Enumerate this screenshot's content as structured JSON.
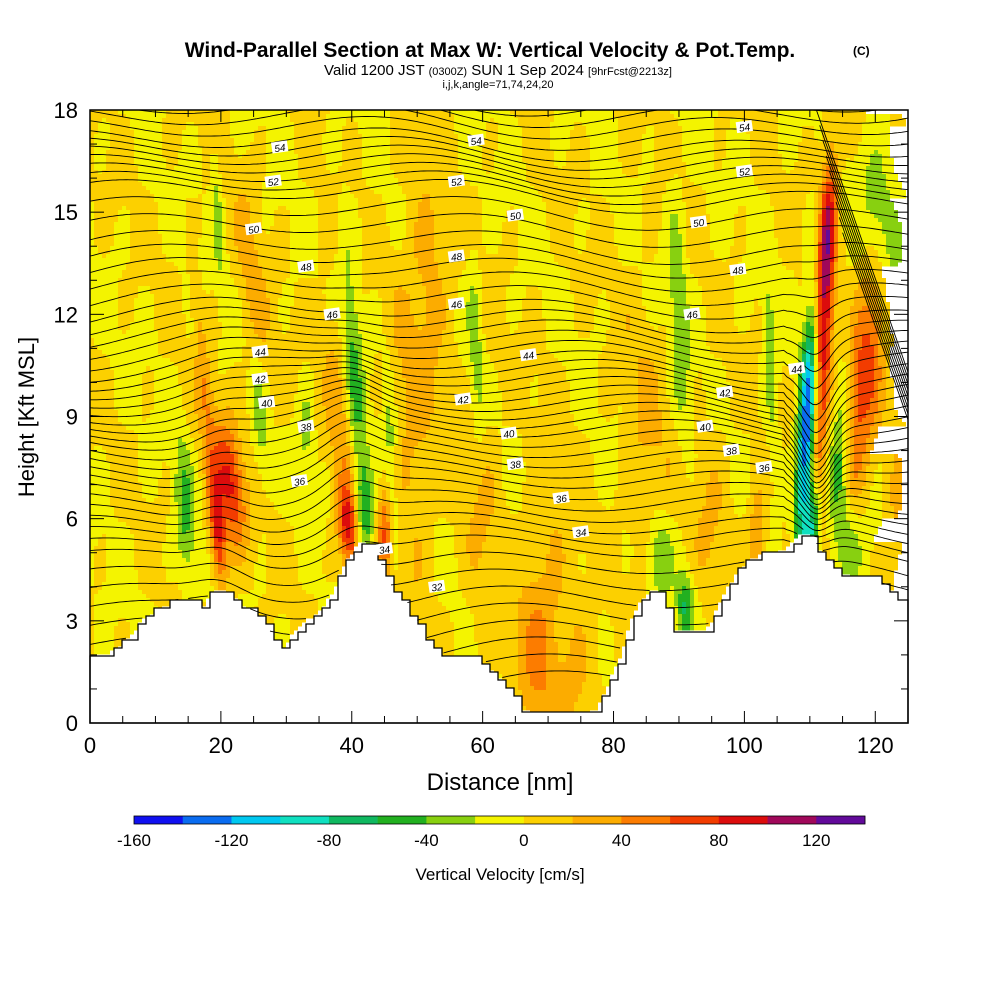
{
  "chart_data": {
    "type": "heatmap",
    "title": "Wind-Parallel Section at Max W: Vertical Velocity & Pot.Temp.",
    "title_mark": "(C)",
    "subtitle_main": "Valid 1200 JST",
    "subtitle_utc": "(0300Z)",
    "subtitle_date": "SUN 1 Sep 2024",
    "subtitle_fcst": "[9hrFcst@2213z]",
    "subtitle2": "i,j,k,angle=71,74,24,20",
    "xlabel": "Distance [nm]",
    "ylabel": "Height [Kft MSL]",
    "xlim": [
      0,
      125
    ],
    "ylim": [
      0,
      18
    ],
    "x_ticks": [
      "0",
      "20",
      "40",
      "60",
      "80",
      "100",
      "120"
    ],
    "y_ticks": [
      "0",
      "3",
      "6",
      "9",
      "12",
      "15",
      "18"
    ],
    "colorbar": {
      "label": "Vertical Velocity [cm/s]",
      "tick_values": [
        -160,
        -120,
        -80,
        -40,
        0,
        40,
        80,
        120
      ],
      "tick_labels": [
        "-160",
        "-120",
        "-80",
        "-40",
        "0",
        "40",
        "80",
        "120"
      ],
      "bin_edges": [
        -160,
        -140,
        -120,
        -100,
        -80,
        -60,
        -40,
        -20,
        0,
        20,
        40,
        60,
        80,
        100,
        120,
        140
      ],
      "colors": [
        "#1010f0",
        "#0a6cf0",
        "#00c8f0",
        "#10e0c0",
        "#10b860",
        "#22b020",
        "#88d010",
        "#f4f400",
        "#fcd000",
        "#fcac00",
        "#fc7c00",
        "#f23c00",
        "#dc0c0c",
        "#a0085a",
        "#620a9a"
      ]
    },
    "terrain": [
      [
        0,
        2.0
      ],
      [
        2,
        2.0
      ],
      [
        4,
        2.2
      ],
      [
        6,
        2.5
      ],
      [
        8,
        3.0
      ],
      [
        10,
        3.3
      ],
      [
        12,
        3.5
      ],
      [
        14,
        3.6
      ],
      [
        16,
        3.6
      ],
      [
        17.5,
        3.4
      ],
      [
        18.5,
        3.8
      ],
      [
        20,
        3.9
      ],
      [
        21.5,
        3.8
      ],
      [
        23,
        3.5
      ],
      [
        25,
        3.2
      ],
      [
        27,
        2.8
      ],
      [
        28.5,
        2.2
      ],
      [
        29.5,
        2.1
      ],
      [
        31,
        2.6
      ],
      [
        33,
        3.0
      ],
      [
        35,
        3.3
      ],
      [
        37,
        3.8
      ],
      [
        38.5,
        4.5
      ],
      [
        40,
        5.0
      ],
      [
        41,
        5.3
      ],
      [
        43,
        5.2
      ],
      [
        44.5,
        4.6
      ],
      [
        46,
        4.0
      ],
      [
        47.5,
        3.6
      ],
      [
        49,
        3.2
      ],
      [
        51,
        2.5
      ],
      [
        53,
        2.0
      ],
      [
        56,
        1.9
      ],
      [
        59,
        1.9
      ],
      [
        61,
        1.6
      ],
      [
        63,
        1.2
      ],
      [
        65,
        0.8
      ],
      [
        66,
        0.4
      ],
      [
        68,
        0.3
      ],
      [
        70,
        0.3
      ],
      [
        72,
        0.3
      ],
      [
        74,
        0.3
      ],
      [
        76,
        0.3
      ],
      [
        77.5,
        0.4
      ],
      [
        78.5,
        0.8
      ],
      [
        80,
        1.5
      ],
      [
        81.5,
        2.2
      ],
      [
        82.5,
        3.0
      ],
      [
        84,
        3.5
      ],
      [
        86,
        3.9
      ],
      [
        87.5,
        3.8
      ],
      [
        88.5,
        3.0
      ],
      [
        89.5,
        2.7
      ],
      [
        92,
        2.7
      ],
      [
        94,
        2.7
      ],
      [
        95,
        3.0
      ],
      [
        96,
        3.4
      ],
      [
        97,
        3.8
      ],
      [
        99,
        4.5
      ],
      [
        101,
        4.8
      ],
      [
        103,
        5.0
      ],
      [
        105,
        5.0
      ],
      [
        107,
        5.2
      ],
      [
        108.5,
        5.6
      ],
      [
        110,
        5.6
      ],
      [
        111,
        5.2
      ],
      [
        112.5,
        4.8
      ],
      [
        114,
        4.5
      ],
      [
        116,
        4.3
      ],
      [
        118,
        4.2
      ],
      [
        120,
        4.2
      ],
      [
        121,
        4.0
      ],
      [
        122.5,
        3.7
      ],
      [
        123.5,
        3.5
      ],
      [
        124.5,
        3.5
      ],
      [
        125,
        3.5
      ]
    ],
    "velocity_features": [
      {
        "x": 21.5,
        "y": 7.0,
        "sx": 1.5,
        "sy": 1.3,
        "amp": 80,
        "tilt": -0.5
      },
      {
        "x": 19.5,
        "y": 5.5,
        "sx": 0.8,
        "sy": 1.1,
        "amp": 78,
        "tilt": -0.4
      },
      {
        "x": 17.5,
        "y": 9.0,
        "sx": 1.2,
        "sy": 2.5,
        "amp": 35,
        "tilt": -0.6
      },
      {
        "x": 16,
        "y": 12.0,
        "sx": 0.9,
        "sy": 1.8,
        "amp": 20,
        "tilt": -0.6
      },
      {
        "x": 14.5,
        "y": 6.2,
        "sx": 1.0,
        "sy": 1.5,
        "amp": -45,
        "tilt": -0.3
      },
      {
        "x": 15.5,
        "y": 11.5,
        "sx": 0.7,
        "sy": 2.0,
        "amp": -32,
        "tilt": -0.5
      },
      {
        "x": 19.5,
        "y": 15.0,
        "sx": 0.6,
        "sy": 1.5,
        "amp": -30,
        "tilt": -0.3
      },
      {
        "x": 26,
        "y": 9.0,
        "sx": 0.8,
        "sy": 1.5,
        "amp": -32,
        "tilt": -0.3
      },
      {
        "x": 25,
        "y": 12.5,
        "sx": 1.5,
        "sy": 2.5,
        "amp": 28,
        "tilt": -0.5
      },
      {
        "x": 33,
        "y": 8.5,
        "sx": 0.8,
        "sy": 1.0,
        "amp": -28,
        "tilt": 0
      },
      {
        "x": 39.5,
        "y": 5.7,
        "sx": 1.1,
        "sy": 0.9,
        "amp": 82,
        "tilt": -0.4
      },
      {
        "x": 38,
        "y": 9.0,
        "sx": 1.3,
        "sy": 2.5,
        "amp": 32,
        "tilt": -0.5
      },
      {
        "x": 42,
        "y": 6.2,
        "sx": 1.0,
        "sy": 1.0,
        "amp": -52,
        "tilt": -0.3
      },
      {
        "x": 40.5,
        "y": 10.0,
        "sx": 1.0,
        "sy": 3.0,
        "amp": -42,
        "tilt": -0.3
      },
      {
        "x": 45,
        "y": 5.5,
        "sx": 0.8,
        "sy": 1.0,
        "amp": 55,
        "tilt": 0
      },
      {
        "x": 46,
        "y": 8.0,
        "sx": 0.6,
        "sy": 2.0,
        "amp": -28,
        "tilt": -0.2
      },
      {
        "x": 49,
        "y": 8.0,
        "sx": 2.0,
        "sy": 3.5,
        "amp": 26,
        "tilt": -0.2
      },
      {
        "x": 52,
        "y": 13.0,
        "sx": 2.0,
        "sy": 2.5,
        "amp": 30,
        "tilt": -0.3
      },
      {
        "x": 59,
        "y": 11.0,
        "sx": 0.8,
        "sy": 2.0,
        "amp": -32,
        "tilt": -0.2
      },
      {
        "x": 60,
        "y": 6.0,
        "sx": 2.0,
        "sy": 3.0,
        "amp": 20,
        "tilt": 0
      },
      {
        "x": 70,
        "y": 4.0,
        "sx": 3.0,
        "sy": 2.5,
        "amp": 25,
        "tilt": 0
      },
      {
        "x": 68,
        "y": 1.5,
        "sx": 2.0,
        "sy": 1.5,
        "amp": 30,
        "tilt": 0
      },
      {
        "x": 75,
        "y": 1.2,
        "sx": 2.0,
        "sy": 1.5,
        "amp": 22,
        "tilt": 0
      },
      {
        "x": 90,
        "y": 12.0,
        "sx": 1.0,
        "sy": 2.5,
        "amp": -38,
        "tilt": -0.2
      },
      {
        "x": 87,
        "y": 4.8,
        "sx": 1.3,
        "sy": 0.9,
        "amp": -45,
        "tilt": 0
      },
      {
        "x": 91,
        "y": 3.4,
        "sx": 0.9,
        "sy": 0.7,
        "amp": -60,
        "tilt": 0
      },
      {
        "x": 85,
        "y": 8.0,
        "sx": 2.5,
        "sy": 3.0,
        "amp": 22,
        "tilt": -0.2
      },
      {
        "x": 95,
        "y": 6.0,
        "sx": 2.0,
        "sy": 2.0,
        "amp": 20,
        "tilt": 0
      },
      {
        "x": 102,
        "y": 5.5,
        "sx": 1.0,
        "sy": 1.0,
        "amp": 45,
        "tilt": 0
      },
      {
        "x": 104,
        "y": 10.5,
        "sx": 0.7,
        "sy": 2.0,
        "amp": -35,
        "tilt": -0.2
      },
      {
        "x": 109.5,
        "y": 8.5,
        "sx": 0.9,
        "sy": 2.5,
        "amp": -148,
        "tilt": 0.25
      },
      {
        "x": 110.5,
        "y": 5.8,
        "sx": 0.8,
        "sy": 1.0,
        "amp": -95,
        "tilt": 0.2
      },
      {
        "x": 112,
        "y": 11.0,
        "sx": 1.0,
        "sy": 3.5,
        "amp": 92,
        "tilt": 0.25
      },
      {
        "x": 112.5,
        "y": 14.5,
        "sx": 0.9,
        "sy": 1.5,
        "amp": 60,
        "tilt": 0.3
      },
      {
        "x": 117.5,
        "y": 9.5,
        "sx": 1.3,
        "sy": 2.5,
        "amp": 58,
        "tilt": 0.3
      },
      {
        "x": 120,
        "y": 11.0,
        "sx": 1.2,
        "sy": 2.0,
        "amp": 40,
        "tilt": 0.3
      },
      {
        "x": 121,
        "y": 15.0,
        "sx": 2.0,
        "sy": 1.5,
        "amp": -40,
        "tilt": -0.8
      },
      {
        "x": 114.5,
        "y": 7.5,
        "sx": 1.0,
        "sy": 2.0,
        "amp": -40,
        "tilt": 0.2
      },
      {
        "x": 116,
        "y": 5.0,
        "sx": 1.3,
        "sy": 1.0,
        "amp": -42,
        "tilt": 0
      },
      {
        "x": 123,
        "y": 6.0,
        "sx": 1.0,
        "sy": 1.5,
        "amp": 20,
        "tilt": 0
      }
    ],
    "theta_contours": {
      "unit": "contour level",
      "baseline_levels": [
        [
          2.0,
          31.0
        ],
        [
          5.0,
          34.0
        ],
        [
          7.0,
          37.0
        ],
        [
          8.5,
          39.5
        ],
        [
          10.5,
          43.5
        ],
        [
          12.0,
          46.0
        ],
        [
          14.0,
          48.5
        ],
        [
          15.5,
          50.0
        ],
        [
          17.0,
          53.0
        ],
        [
          18.0,
          54.5
        ]
      ],
      "labels": [
        {
          "text": "54",
          "x": 29,
          "y": 16.9
        },
        {
          "text": "52",
          "x": 28,
          "y": 15.9
        },
        {
          "text": "50",
          "x": 25,
          "y": 14.5
        },
        {
          "text": "48",
          "x": 33,
          "y": 13.4
        },
        {
          "text": "46",
          "x": 37,
          "y": 12.0
        },
        {
          "text": "44",
          "x": 26,
          "y": 10.9
        },
        {
          "text": "42",
          "x": 26,
          "y": 10.1
        },
        {
          "text": "40",
          "x": 27,
          "y": 9.4
        },
        {
          "text": "38",
          "x": 33,
          "y": 8.7
        },
        {
          "text": "36",
          "x": 32,
          "y": 7.1
        },
        {
          "text": "34",
          "x": 45,
          "y": 5.1
        },
        {
          "text": "32",
          "x": 53,
          "y": 4.0
        },
        {
          "text": "54",
          "x": 59,
          "y": 17.1
        },
        {
          "text": "52",
          "x": 56,
          "y": 15.9
        },
        {
          "text": "50",
          "x": 65,
          "y": 14.9
        },
        {
          "text": "48",
          "x": 56,
          "y": 13.7
        },
        {
          "text": "46",
          "x": 56,
          "y": 12.3
        },
        {
          "text": "44",
          "x": 67,
          "y": 10.8
        },
        {
          "text": "42",
          "x": 57,
          "y": 9.5
        },
        {
          "text": "40",
          "x": 64,
          "y": 8.5
        },
        {
          "text": "38",
          "x": 65,
          "y": 7.6
        },
        {
          "text": "36",
          "x": 72,
          "y": 6.6
        },
        {
          "text": "34",
          "x": 75,
          "y": 5.6
        },
        {
          "text": "54",
          "x": 100,
          "y": 17.5
        },
        {
          "text": "52",
          "x": 100,
          "y": 16.2
        },
        {
          "text": "50",
          "x": 93,
          "y": 14.7
        },
        {
          "text": "48",
          "x": 99,
          "y": 13.3
        },
        {
          "text": "46",
          "x": 92,
          "y": 12.0
        },
        {
          "text": "44",
          "x": 108,
          "y": 10.4
        },
        {
          "text": "42",
          "x": 97,
          "y": 9.7
        },
        {
          "text": "40",
          "x": 94,
          "y": 8.7
        },
        {
          "text": "38",
          "x": 98,
          "y": 8.0
        },
        {
          "text": "36",
          "x": 103,
          "y": 7.5
        }
      ]
    }
  }
}
